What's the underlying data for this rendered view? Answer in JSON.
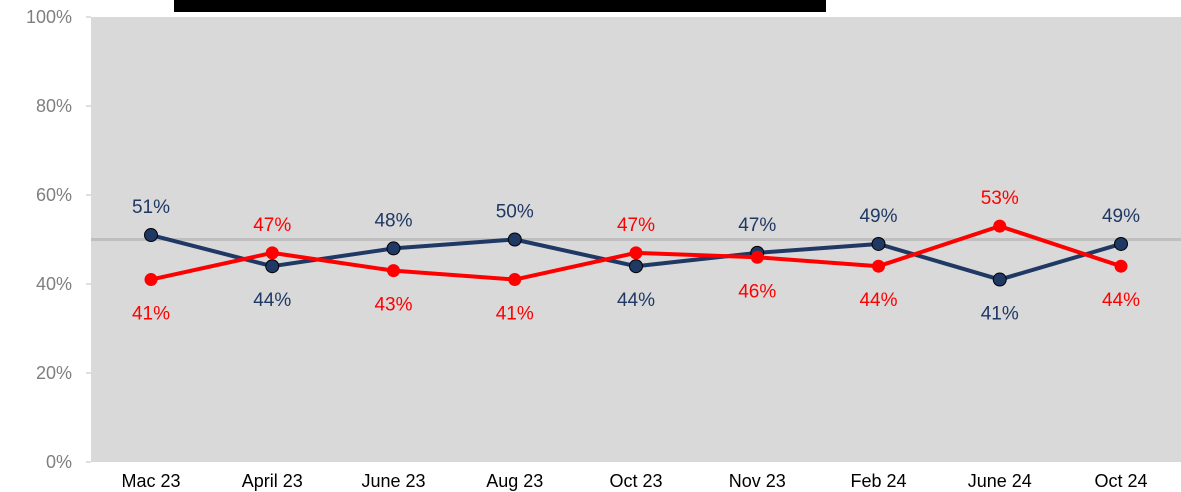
{
  "chart_data": {
    "type": "line",
    "categories": [
      "Mac 23",
      "April 23",
      "June 23",
      "Aug 23",
      "Oct 23",
      "Nov 23",
      "Feb 24",
      "June 24",
      "Oct 24"
    ],
    "yticks": [
      "0%",
      "20%",
      "40%",
      "60%",
      "80%",
      "100%"
    ],
    "ylim": [
      0,
      100
    ],
    "reference_line": 50,
    "grid": false,
    "plot_background": "#d9d9d9",
    "reference_line_color": "#bfbfbf",
    "series": [
      {
        "color": "#1f3864",
        "values": [
          51,
          44,
          48,
          50,
          44,
          47,
          49,
          41,
          49
        ],
        "labels": [
          "51%",
          "44%",
          "48%",
          "50%",
          "44%",
          "47%",
          "49%",
          "41%",
          "49%"
        ],
        "label_positions": [
          "above",
          "below",
          "above",
          "above",
          "below",
          "above",
          "above",
          "below",
          "above"
        ]
      },
      {
        "color": "#ff0000",
        "values": [
          41,
          47,
          43,
          41,
          47,
          46,
          44,
          53,
          44
        ],
        "labels": [
          "41%",
          "47%",
          "43%",
          "41%",
          "47%",
          "46%",
          "44%",
          "53%",
          "44%"
        ],
        "label_positions": [
          "below",
          "above",
          "below",
          "below",
          "above",
          "below",
          "below",
          "above",
          "below"
        ]
      }
    ],
    "title_bar_color": "#000000"
  }
}
